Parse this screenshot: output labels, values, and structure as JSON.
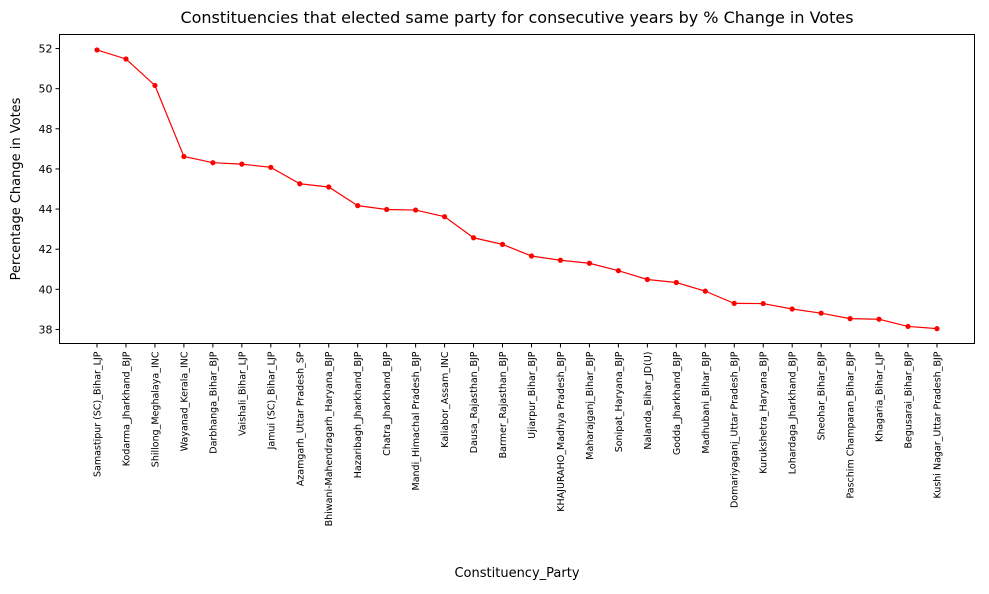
{
  "chart_data": {
    "type": "line",
    "title": "Constituencies that elected same party for consecutive years by % Change in Votes",
    "xlabel": "Constituency_Party",
    "ylabel": "Percentage Change in Votes",
    "ylim": [
      37.3,
      52.7
    ],
    "yticks": [
      38,
      40,
      42,
      44,
      46,
      48,
      50,
      52
    ],
    "grid": false,
    "line_color": "#ff0000",
    "marker": "circle",
    "categories": [
      "Samastipur (SC)_Bihar_LJP",
      "Kodarma_Jharkhand_BJP",
      "Shillong_Meghalaya_INC",
      "Wayanad_Kerala_INC",
      "Darbhanga_Bihar_BJP",
      "Vaishali_Bihar_LJP",
      "Jamui (SC)_Bihar_LJP",
      "Azamgarh_Uttar Pradesh_SP",
      "Bhiwani-Mahendragarh_Haryana_BJP",
      "Hazaribagh_Jharkhand_BJP",
      "Chatra_Jharkhand_BJP",
      "Mandi_Himachal Pradesh_BJP",
      "Kaliabor_Assam_INC",
      "Dausa_Rajasthan_BJP",
      "Barmer_Rajasthan_BJP",
      "Ujiarpur_Bihar_BJP",
      "KHAJURAHO_Madhya Pradesh_BJP",
      "Maharajganj_Bihar_BJP",
      "Sonipat_Haryana_BJP",
      "Nalanda_Bihar_JD(U)",
      "Godda_Jharkhand_BJP",
      "Madhubani_Bihar_BJP",
      "Domariyaganj_Uttar Pradesh_BJP",
      "Kurukshetra_Haryana_BJP",
      "Lohardaga_Jharkhand_BJP",
      "Sheohar_Bihar_BJP",
      "Paschim Champaran_Bihar_BJP",
      "Khagaria_Bihar_LJP",
      "Begusarai_Bihar_BJP",
      "Kushi Nagar_Uttar Pradesh_BJP"
    ],
    "values": [
      51.93,
      51.48,
      50.16,
      46.62,
      46.31,
      46.24,
      46.08,
      45.26,
      45.1,
      44.17,
      43.98,
      43.95,
      43.62,
      42.57,
      42.24,
      41.66,
      41.45,
      41.3,
      40.93,
      40.49,
      40.34,
      39.91,
      39.3,
      39.29,
      39.02,
      38.81,
      38.54,
      38.51,
      38.15,
      38.04
    ]
  }
}
